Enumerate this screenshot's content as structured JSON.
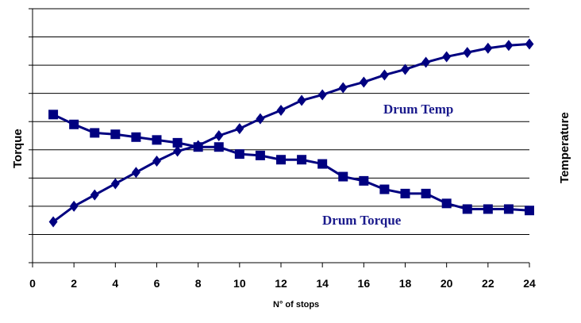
{
  "chart_data": {
    "type": "line",
    "xlabel": "N° of stops",
    "ylabel_left": "Torque",
    "ylabel_right": "Temperature",
    "xlim": [
      0,
      24
    ],
    "x_ticks": [
      "0",
      "2",
      "4",
      "6",
      "8",
      "10",
      "12",
      "14",
      "16",
      "18",
      "20",
      "22",
      "24"
    ],
    "ylim": [
      0,
      9
    ],
    "y_ticks_shown": false,
    "grid": "horizontal",
    "colors": {
      "series": "#000080",
      "label": "#1a1a8c",
      "grid": "#000000"
    },
    "x": [
      1,
      2,
      3,
      4,
      5,
      6,
      7,
      8,
      9,
      10,
      11,
      12,
      13,
      14,
      15,
      16,
      17,
      18,
      19,
      20,
      21,
      22,
      23,
      24
    ],
    "series": [
      {
        "name": "Drum Temp",
        "marker": "diamond",
        "values": [
          1.45,
          2.0,
          2.4,
          2.8,
          3.2,
          3.6,
          3.95,
          4.15,
          4.5,
          4.75,
          5.1,
          5.4,
          5.75,
          5.95,
          6.2,
          6.4,
          6.65,
          6.85,
          7.1,
          7.3,
          7.45,
          7.6,
          7.7,
          7.75
        ]
      },
      {
        "name": "Drum Torque",
        "marker": "square",
        "values": [
          5.25,
          4.9,
          4.6,
          4.55,
          4.45,
          4.35,
          4.25,
          4.1,
          4.1,
          3.85,
          3.8,
          3.65,
          3.65,
          3.5,
          3.05,
          2.9,
          2.6,
          2.45,
          2.45,
          2.1,
          1.9,
          1.9,
          1.9,
          1.85
        ]
      }
    ]
  }
}
